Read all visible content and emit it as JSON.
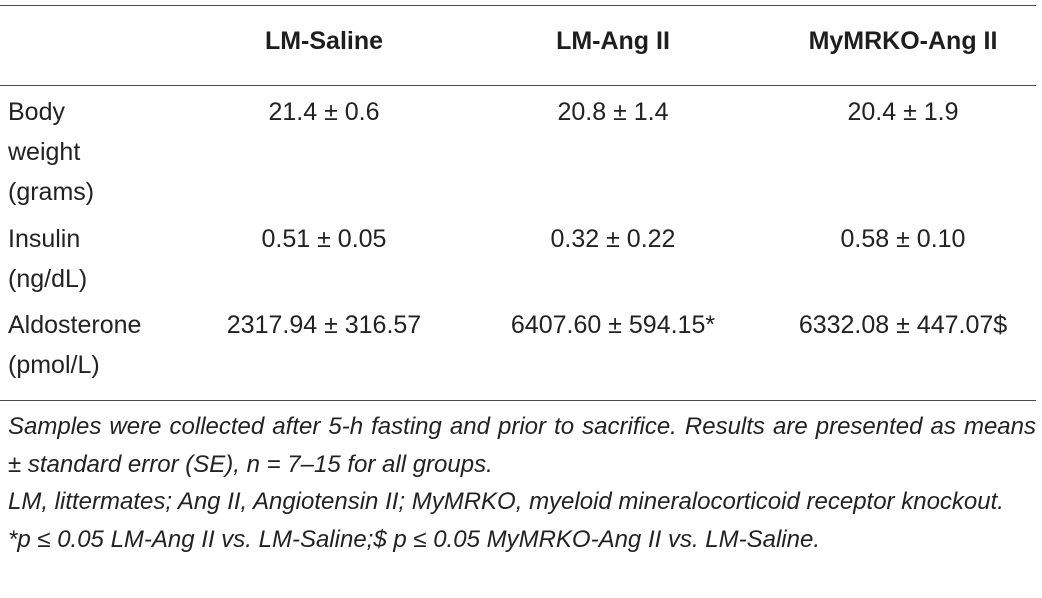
{
  "table": {
    "headers": [
      "",
      "LM-Saline",
      "LM-Ang II",
      "MyMRKO-Ang II"
    ],
    "rows": [
      {
        "label": "Body weight (grams)",
        "values": [
          "21.4 ± 0.6",
          "20.8 ± 1.4",
          "20.4 ± 1.9"
        ]
      },
      {
        "label": "Insulin (ng/dL)",
        "values": [
          "0.51 ± 0.05",
          "0.32 ± 0.22",
          "0.58 ± 0.10"
        ]
      },
      {
        "label": "Aldosterone (pmol/L)",
        "values": [
          "2317.94 ± 316.57",
          "6407.60 ± 594.15*",
          "6332.08 ± 447.07$"
        ]
      }
    ]
  },
  "footnotes": [
    "Samples were collected after 5-h fasting and prior to sacrifice. Results are presented as means ± standard error (SE), n = 7–15 for all groups.",
    "LM, littermates; Ang II, Angiotensin II; MyMRKO, myeloid mineralocorticoid receptor knockout.",
    "*p ≤ 0.05 LM-Ang II vs. LM-Saline;$ p ≤ 0.05 MyMRKO-Ang II vs. LM-Saline."
  ]
}
